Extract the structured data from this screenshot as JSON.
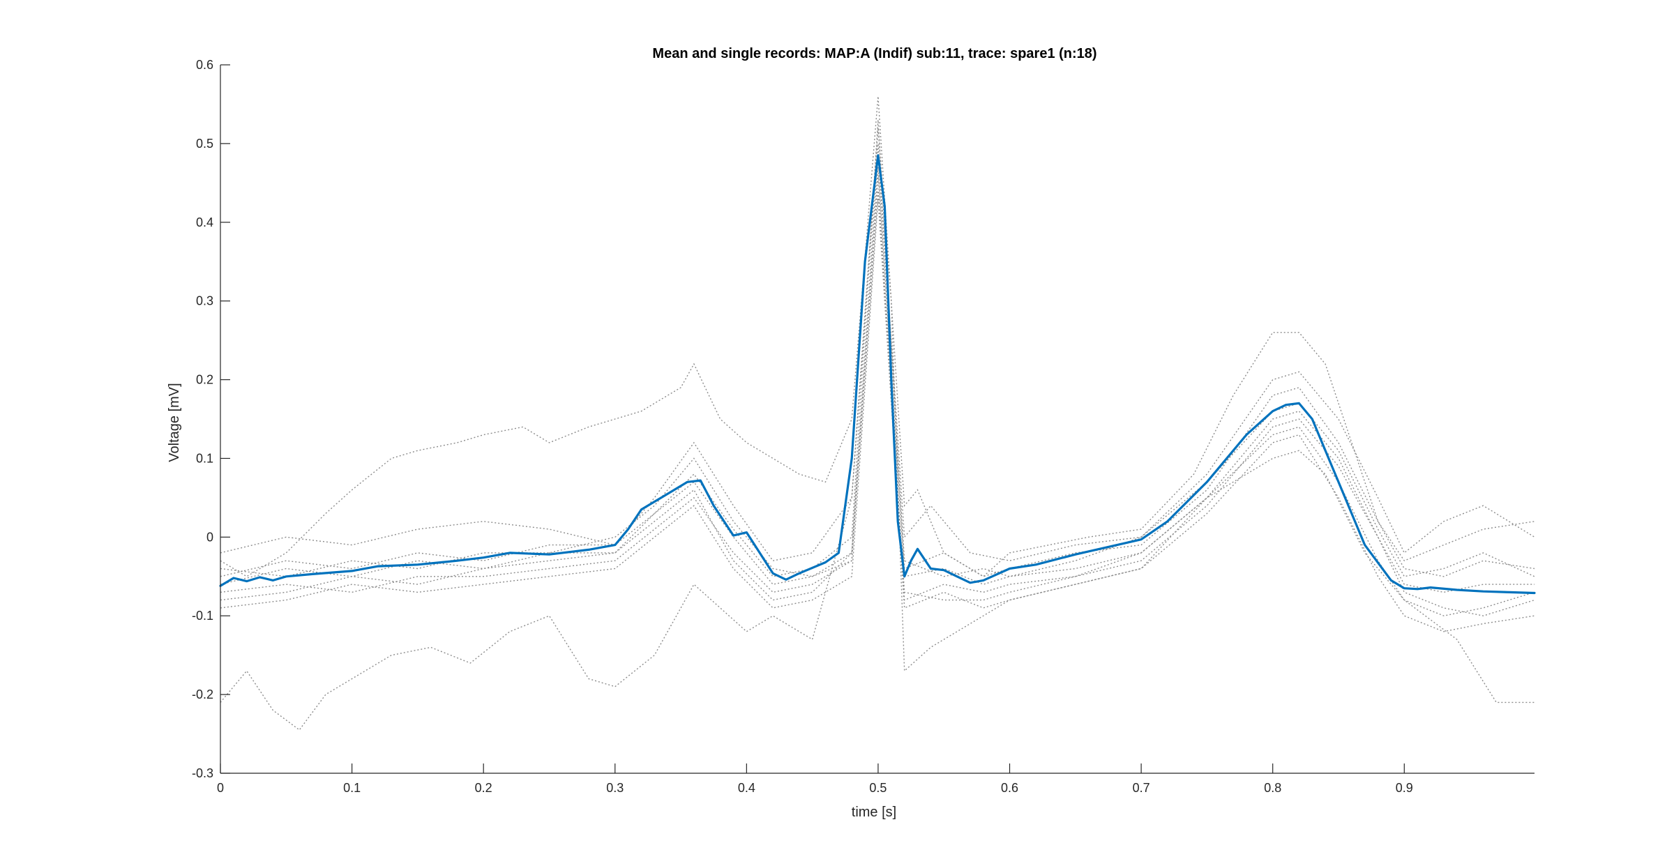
{
  "chart_data": {
    "type": "line",
    "title": "Mean and single records: MAP:A (Indif) sub:11, trace: spare1 (n:18)",
    "xlabel": "time [s]",
    "ylabel": "Voltage [mV]",
    "xlim": [
      0,
      0.999
    ],
    "ylim": [
      -0.3,
      0.6
    ],
    "xticks": [
      0,
      0.1,
      0.2,
      0.3,
      0.4,
      0.5,
      0.6,
      0.7,
      0.8,
      0.9
    ],
    "xtick_labels": [
      "0",
      "0.1",
      "0.2",
      "0.3",
      "0.4",
      "0.5",
      "0.6",
      "0.7",
      "0.8",
      "0.9"
    ],
    "yticks": [
      -0.3,
      -0.2,
      -0.1,
      0,
      0.1,
      0.2,
      0.3,
      0.4,
      0.5,
      0.6
    ],
    "ytick_labels": [
      "-0.3",
      "-0.2",
      "-0.1",
      "0",
      "0.1",
      "0.2",
      "0.3",
      "0.4",
      "0.5",
      "0.6"
    ],
    "grid": false,
    "legend": "none",
    "colors": {
      "mean": "#0072BD",
      "single": "#8c8c8c",
      "axes": "#262626"
    },
    "mean": {
      "x": [
        0,
        0.01,
        0.02,
        0.03,
        0.04,
        0.05,
        0.07,
        0.1,
        0.12,
        0.15,
        0.18,
        0.2,
        0.22,
        0.25,
        0.28,
        0.3,
        0.31,
        0.32,
        0.34,
        0.355,
        0.365,
        0.375,
        0.39,
        0.4,
        0.41,
        0.42,
        0.43,
        0.44,
        0.46,
        0.47,
        0.48,
        0.49,
        0.5,
        0.505,
        0.51,
        0.515,
        0.52,
        0.525,
        0.53,
        0.54,
        0.55,
        0.56,
        0.57,
        0.58,
        0.6,
        0.62,
        0.65,
        0.7,
        0.72,
        0.75,
        0.78,
        0.8,
        0.81,
        0.82,
        0.83,
        0.85,
        0.87,
        0.89,
        0.9,
        0.91,
        0.92,
        0.94,
        0.96,
        0.98,
        0.999
      ],
      "y": [
        -0.062,
        -0.052,
        -0.056,
        -0.051,
        -0.055,
        -0.05,
        -0.047,
        -0.043,
        -0.037,
        -0.035,
        -0.03,
        -0.026,
        -0.02,
        -0.022,
        -0.016,
        -0.01,
        0.01,
        0.035,
        0.055,
        0.07,
        0.072,
        0.04,
        0.002,
        0.006,
        -0.02,
        -0.046,
        -0.054,
        -0.046,
        -0.032,
        -0.02,
        0.1,
        0.35,
        0.485,
        0.42,
        0.2,
        0.02,
        -0.05,
        -0.03,
        -0.015,
        -0.04,
        -0.042,
        -0.05,
        -0.058,
        -0.055,
        -0.04,
        -0.035,
        -0.022,
        -0.003,
        0.02,
        0.07,
        0.13,
        0.16,
        0.168,
        0.17,
        0.15,
        0.07,
        -0.01,
        -0.055,
        -0.065,
        -0.066,
        -0.064,
        -0.067,
        -0.069,
        -0.07,
        -0.071
      ]
    },
    "single_records": [
      {
        "x": [
          0,
          0.02,
          0.05,
          0.08,
          0.1,
          0.13,
          0.15,
          0.18,
          0.2,
          0.23,
          0.25,
          0.28,
          0.3,
          0.32,
          0.35,
          0.36,
          0.38,
          0.4,
          0.42,
          0.44,
          0.46,
          0.48,
          0.5,
          0.52,
          0.53,
          0.55,
          0.58,
          0.6,
          0.63,
          0.66,
          0.7,
          0.74,
          0.77,
          0.8,
          0.82,
          0.84,
          0.86,
          0.88,
          0.9,
          0.93,
          0.96,
          0.999
        ],
        "y": [
          -0.03,
          -0.05,
          -0.02,
          0.03,
          0.06,
          0.1,
          0.11,
          0.12,
          0.13,
          0.14,
          0.12,
          0.14,
          0.15,
          0.16,
          0.19,
          0.22,
          0.15,
          0.12,
          0.1,
          0.08,
          0.07,
          0.15,
          0.56,
          0.04,
          0.06,
          -0.02,
          -0.05,
          -0.02,
          -0.01,
          0.0,
          0.01,
          0.08,
          0.18,
          0.26,
          0.26,
          0.22,
          0.12,
          0.02,
          -0.03,
          -0.01,
          0.01,
          0.02
        ]
      },
      {
        "x": [
          0,
          0.02,
          0.04,
          0.06,
          0.08,
          0.1,
          0.13,
          0.16,
          0.19,
          0.22,
          0.25,
          0.28,
          0.3,
          0.33,
          0.36,
          0.38,
          0.4,
          0.42,
          0.45,
          0.48,
          0.5,
          0.51,
          0.52,
          0.54,
          0.56,
          0.6,
          0.65,
          0.7,
          0.75,
          0.8,
          0.82,
          0.84,
          0.87,
          0.9,
          0.94,
          0.97,
          0.999
        ],
        "y": [
          -0.21,
          -0.17,
          -0.22,
          -0.245,
          -0.2,
          -0.18,
          -0.15,
          -0.14,
          -0.16,
          -0.12,
          -0.1,
          -0.18,
          -0.19,
          -0.15,
          -0.06,
          -0.09,
          -0.12,
          -0.1,
          -0.13,
          0.05,
          0.52,
          0.3,
          -0.17,
          -0.14,
          -0.12,
          -0.08,
          -0.06,
          -0.04,
          0.05,
          0.1,
          0.11,
          0.08,
          -0.02,
          -0.08,
          -0.13,
          -0.21,
          -0.21
        ]
      },
      {
        "x": [
          0,
          0.05,
          0.1,
          0.15,
          0.2,
          0.25,
          0.3,
          0.33,
          0.36,
          0.39,
          0.42,
          0.45,
          0.48,
          0.5,
          0.52,
          0.54,
          0.57,
          0.6,
          0.65,
          0.7,
          0.75,
          0.8,
          0.82,
          0.85,
          0.88,
          0.9,
          0.93,
          0.96,
          0.999
        ],
        "y": [
          -0.02,
          0.0,
          -0.01,
          0.01,
          0.02,
          0.01,
          -0.01,
          0.05,
          0.12,
          0.04,
          -0.03,
          -0.02,
          0.05,
          0.5,
          0.0,
          0.04,
          -0.02,
          -0.03,
          -0.01,
          0.0,
          0.08,
          0.2,
          0.21,
          0.15,
          0.05,
          -0.02,
          0.02,
          0.04,
          0.0
        ]
      },
      {
        "x": [
          0,
          0.05,
          0.1,
          0.15,
          0.2,
          0.25,
          0.3,
          0.33,
          0.36,
          0.39,
          0.42,
          0.45,
          0.48,
          0.5,
          0.52,
          0.55,
          0.58,
          0.6,
          0.65,
          0.7,
          0.75,
          0.8,
          0.82,
          0.85,
          0.88,
          0.9,
          0.93,
          0.96,
          0.999
        ],
        "y": [
          -0.08,
          -0.07,
          -0.05,
          -0.06,
          -0.04,
          -0.03,
          -0.02,
          0.02,
          0.06,
          -0.03,
          -0.08,
          -0.07,
          -0.02,
          0.46,
          -0.08,
          -0.06,
          -0.07,
          -0.06,
          -0.05,
          -0.03,
          0.04,
          0.14,
          0.15,
          0.09,
          0.0,
          -0.07,
          -0.09,
          -0.1,
          -0.08
        ]
      },
      {
        "x": [
          0,
          0.05,
          0.1,
          0.15,
          0.2,
          0.25,
          0.3,
          0.33,
          0.36,
          0.39,
          0.42,
          0.45,
          0.48,
          0.5,
          0.52,
          0.55,
          0.58,
          0.6,
          0.65,
          0.7,
          0.75,
          0.8,
          0.82,
          0.85,
          0.88,
          0.9,
          0.93,
          0.96,
          0.999
        ],
        "y": [
          -0.05,
          -0.03,
          -0.04,
          -0.02,
          -0.03,
          -0.01,
          -0.01,
          0.03,
          0.08,
          0.01,
          -0.05,
          -0.04,
          0.0,
          0.53,
          -0.04,
          -0.02,
          -0.05,
          -0.04,
          -0.02,
          -0.01,
          0.06,
          0.18,
          0.19,
          0.12,
          0.02,
          -0.04,
          -0.05,
          -0.03,
          -0.04
        ]
      },
      {
        "x": [
          0,
          0.05,
          0.1,
          0.15,
          0.2,
          0.25,
          0.3,
          0.33,
          0.36,
          0.39,
          0.42,
          0.45,
          0.48,
          0.5,
          0.52,
          0.55,
          0.58,
          0.6,
          0.65,
          0.7,
          0.75,
          0.8,
          0.82,
          0.85,
          0.88,
          0.9,
          0.93,
          0.96,
          0.999
        ],
        "y": [
          -0.07,
          -0.06,
          -0.07,
          -0.05,
          -0.05,
          -0.04,
          -0.03,
          0.01,
          0.05,
          -0.02,
          -0.07,
          -0.06,
          -0.03,
          0.44,
          -0.07,
          -0.08,
          -0.08,
          -0.07,
          -0.05,
          -0.02,
          0.05,
          0.13,
          0.14,
          0.07,
          -0.03,
          -0.08,
          -0.1,
          -0.09,
          -0.07
        ]
      },
      {
        "x": [
          0,
          0.05,
          0.1,
          0.15,
          0.2,
          0.25,
          0.3,
          0.33,
          0.36,
          0.39,
          0.42,
          0.45,
          0.48,
          0.5,
          0.52,
          0.55,
          0.58,
          0.6,
          0.65,
          0.7,
          0.75,
          0.8,
          0.82,
          0.85,
          0.88,
          0.9,
          0.93,
          0.96,
          0.999
        ],
        "y": [
          -0.04,
          -0.05,
          -0.03,
          -0.04,
          -0.02,
          -0.02,
          0.0,
          0.04,
          0.1,
          0.02,
          -0.04,
          -0.05,
          -0.02,
          0.49,
          -0.03,
          -0.05,
          -0.04,
          -0.05,
          -0.03,
          0.0,
          0.07,
          0.16,
          0.17,
          0.11,
          0.01,
          -0.05,
          -0.04,
          -0.02,
          -0.05
        ]
      },
      {
        "x": [
          0,
          0.05,
          0.1,
          0.15,
          0.2,
          0.25,
          0.3,
          0.33,
          0.36,
          0.39,
          0.42,
          0.45,
          0.48,
          0.5,
          0.52,
          0.55,
          0.58,
          0.6,
          0.65,
          0.7,
          0.75,
          0.8,
          0.82,
          0.85,
          0.88,
          0.9,
          0.93,
          0.96,
          0.999
        ],
        "y": [
          -0.06,
          -0.04,
          -0.05,
          -0.03,
          -0.04,
          -0.02,
          -0.02,
          0.03,
          0.07,
          0.0,
          -0.06,
          -0.05,
          -0.03,
          0.47,
          -0.05,
          -0.04,
          -0.06,
          -0.05,
          -0.04,
          -0.02,
          0.05,
          0.15,
          0.16,
          0.1,
          0.0,
          -0.06,
          -0.07,
          -0.06,
          -0.06
        ]
      },
      {
        "x": [
          0,
          0.05,
          0.1,
          0.15,
          0.2,
          0.25,
          0.3,
          0.33,
          0.36,
          0.39,
          0.42,
          0.45,
          0.48,
          0.5,
          0.52,
          0.55,
          0.58,
          0.6,
          0.65,
          0.7,
          0.75,
          0.8,
          0.82,
          0.85,
          0.88,
          0.9,
          0.93,
          0.96,
          0.999
        ],
        "y": [
          -0.09,
          -0.08,
          -0.06,
          -0.07,
          -0.06,
          -0.05,
          -0.04,
          0.0,
          0.04,
          -0.04,
          -0.09,
          -0.08,
          -0.05,
          0.43,
          -0.09,
          -0.07,
          -0.09,
          -0.08,
          -0.06,
          -0.04,
          0.03,
          0.12,
          0.13,
          0.05,
          -0.05,
          -0.1,
          -0.12,
          -0.11,
          -0.1
        ]
      }
    ]
  }
}
